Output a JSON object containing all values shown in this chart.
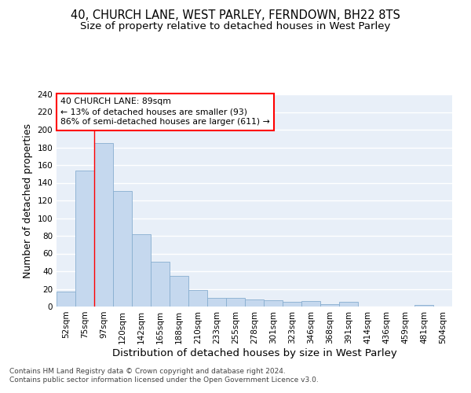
{
  "title1": "40, CHURCH LANE, WEST PARLEY, FERNDOWN, BH22 8TS",
  "title2": "Size of property relative to detached houses in West Parley",
  "xlabel": "Distribution of detached houses by size in West Parley",
  "ylabel": "Number of detached properties",
  "footnote": "Contains HM Land Registry data © Crown copyright and database right 2024.\nContains public sector information licensed under the Open Government Licence v3.0.",
  "categories": [
    "52sqm",
    "75sqm",
    "97sqm",
    "120sqm",
    "142sqm",
    "165sqm",
    "188sqm",
    "210sqm",
    "233sqm",
    "255sqm",
    "278sqm",
    "301sqm",
    "323sqm",
    "346sqm",
    "368sqm",
    "391sqm",
    "414sqm",
    "436sqm",
    "459sqm",
    "481sqm",
    "504sqm"
  ],
  "values": [
    17,
    154,
    185,
    131,
    82,
    51,
    35,
    19,
    10,
    10,
    8,
    7,
    5,
    6,
    3,
    5,
    0,
    0,
    0,
    2,
    0
  ],
  "bar_color": "#c5d8ee",
  "bar_edge_color": "#88aed0",
  "annotation_line1": "40 CHURCH LANE: 89sqm",
  "annotation_line2": "← 13% of detached houses are smaller (93)",
  "annotation_line3": "86% of semi-detached houses are larger (611) →",
  "red_line_x": 2.0,
  "ylim": [
    0,
    240
  ],
  "yticks": [
    0,
    20,
    40,
    60,
    80,
    100,
    120,
    140,
    160,
    180,
    200,
    220,
    240
  ],
  "bg_color": "#e8eff8",
  "grid_color": "#ffffff",
  "title_fontsize": 10.5,
  "subtitle_fontsize": 9.5,
  "axis_label_fontsize": 9,
  "tick_fontsize": 7.5,
  "bar_width": 1.0
}
